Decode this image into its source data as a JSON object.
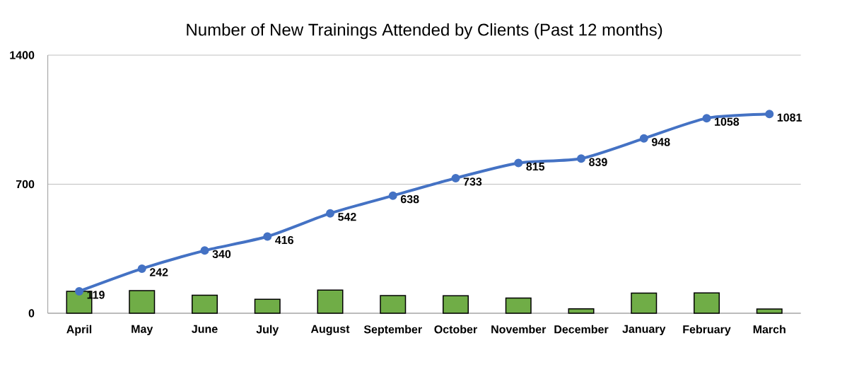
{
  "chart_data": {
    "type": "bar",
    "title": "Number of New Trainings Attended by Clients (Past 12 months)",
    "categories": [
      "April",
      "May",
      "June",
      "July",
      "August",
      "September",
      "October",
      "November",
      "December",
      "January",
      "February",
      "March"
    ],
    "series": [
      {
        "color": "#70ad47",
        "values": [
          119,
          123,
          98,
          76,
          126,
          96,
          95,
          82,
          24,
          109,
          110,
          23
        ]
      },
      {
        "type": "line",
        "color": "#4472c4",
        "marker": "circle",
        "values": [
          119,
          242,
          340,
          416,
          542,
          638,
          733,
          815,
          839,
          948,
          1058,
          1081
        ],
        "value_labels": [
          "119",
          "242",
          "340",
          "416",
          "542",
          "638",
          "733",
          "815",
          "839",
          "948",
          "1058",
          "1081"
        ]
      }
    ],
    "ylim": [
      0,
      1400
    ],
    "yticks": [
      0,
      700,
      1400
    ],
    "grid": "y"
  }
}
